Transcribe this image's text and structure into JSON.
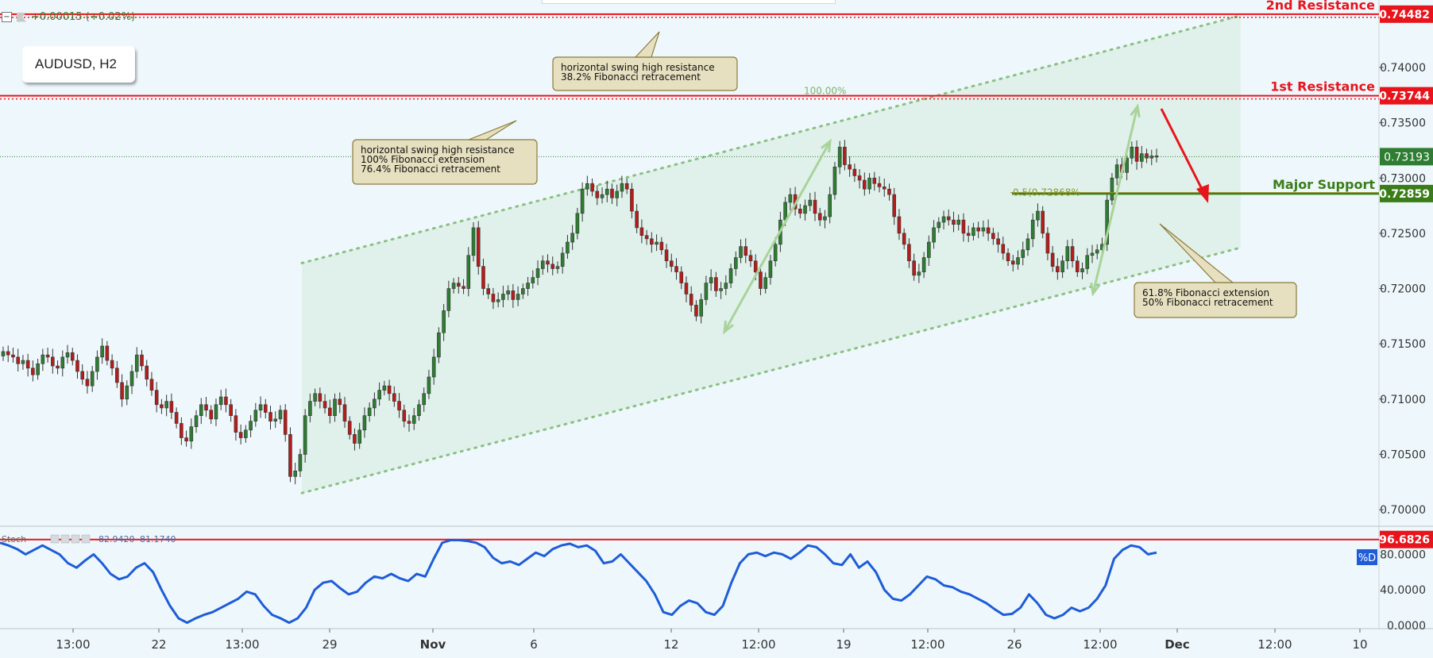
{
  "header": {
    "change_text": "+0.00015 (+0.02%)",
    "symbol_label": "AUDUSD, H2",
    "minus_glyph": "−"
  },
  "colors": {
    "background": "#eef8fc",
    "resistance": "#e8141c",
    "support": "#3a7d18",
    "candle_up": "#2e7d32",
    "candle_down": "#b71c1c",
    "channel": "#8cc084",
    "stoch_line": "#1e5cd8"
  },
  "levels": {
    "r2": {
      "label": "2nd Resistance",
      "value": "0.74482"
    },
    "r1": {
      "label": "1st Resistance",
      "value": "0.73744"
    },
    "support": {
      "label": "Major Support",
      "value": "0.72859"
    },
    "current": {
      "value": "0.73193"
    }
  },
  "callouts": [
    {
      "lines": [
        "horizontal swing high resistance",
        "38.2% Fibonacci retracement"
      ]
    },
    {
      "lines": [
        "horizontal swing high resistance",
        "100% Fibonacci extension",
        "76.4% Fibonacci retracement"
      ]
    },
    {
      "lines": [
        "61.8% Fibonacci extension",
        "50% Fibonacci retracement"
      ]
    }
  ],
  "fib_labels": {
    "top": "100.00%",
    "mid": "0.5(0.72868%"
  },
  "stoch": {
    "name": "Stoch",
    "value1": "82.9420",
    "value2": "81.1740",
    "level": "96.6826",
    "badge": "%D",
    "ticks": [
      "80.0000",
      "40.0000",
      "0.0000"
    ],
    "ylim": [
      0,
      100
    ],
    "values": [
      93,
      90,
      86,
      80,
      85,
      90,
      85,
      80,
      70,
      65,
      73,
      80,
      70,
      58,
      52,
      55,
      65,
      70,
      60,
      40,
      22,
      8,
      3,
      8,
      12,
      15,
      20,
      25,
      30,
      38,
      35,
      22,
      12,
      8,
      3,
      8,
      20,
      40,
      48,
      50,
      42,
      35,
      38,
      48,
      55,
      53,
      58,
      53,
      50,
      58,
      55,
      75,
      93,
      96,
      96,
      95,
      93,
      88,
      76,
      70,
      72,
      68,
      75,
      82,
      78,
      86,
      90,
      92,
      88,
      90,
      84,
      70,
      72,
      80,
      70,
      60,
      50,
      35,
      15,
      12,
      22,
      28,
      25,
      15,
      12,
      22,
      48,
      70,
      80,
      82,
      78,
      82,
      80,
      75,
      82,
      90,
      88,
      80,
      70,
      68,
      80,
      65,
      72,
      60,
      40,
      30,
      28,
      35,
      45,
      55,
      52,
      45,
      43,
      38,
      35,
      30,
      25,
      18,
      12,
      13,
      20,
      35,
      25,
      12,
      8,
      12,
      20,
      16,
      20,
      30,
      45,
      75,
      85,
      90,
      88,
      80,
      82
    ]
  },
  "chart_data": {
    "type": "candlestick",
    "symbol": "AUDUSD, H2",
    "ylim": [
      0.6985,
      0.7461
    ],
    "y_ticks": [
      "0.74000",
      "0.73500",
      "0.73000",
      "0.72500",
      "0.72000",
      "0.71500",
      "0.71000",
      "0.70500",
      "0.70000"
    ],
    "x_ticks": [
      "13:00",
      "22",
      "13:00",
      "29",
      "Nov",
      "6",
      "12",
      "12:00",
      "19",
      "12:00",
      "26",
      "12:00",
      "Dec",
      "12:00",
      "10"
    ],
    "closes": [
      0.7143,
      0.714,
      0.7138,
      0.7132,
      0.7135,
      0.7128,
      0.7122,
      0.7132,
      0.714,
      0.7138,
      0.713,
      0.7128,
      0.7138,
      0.7142,
      0.7135,
      0.7125,
      0.7118,
      0.7112,
      0.7125,
      0.7138,
      0.7148,
      0.7135,
      0.7128,
      0.7115,
      0.71,
      0.7112,
      0.7125,
      0.714,
      0.713,
      0.7118,
      0.7108,
      0.7095,
      0.7092,
      0.7098,
      0.7088,
      0.7078,
      0.7065,
      0.7062,
      0.7075,
      0.7085,
      0.7095,
      0.709,
      0.7082,
      0.7095,
      0.7102,
      0.7095,
      0.7085,
      0.707,
      0.7065,
      0.7072,
      0.708,
      0.709,
      0.7095,
      0.7088,
      0.708,
      0.7082,
      0.709,
      0.7068,
      0.703,
      0.7035,
      0.705,
      0.7085,
      0.7098,
      0.7105,
      0.7098,
      0.7092,
      0.7085,
      0.71,
      0.7095,
      0.708,
      0.7068,
      0.706,
      0.7072,
      0.7085,
      0.7092,
      0.71,
      0.7108,
      0.7112,
      0.7105,
      0.7098,
      0.709,
      0.708,
      0.7078,
      0.7085,
      0.7095,
      0.7105,
      0.712,
      0.7138,
      0.716,
      0.718,
      0.72,
      0.7205,
      0.7202,
      0.72,
      0.723,
      0.7255,
      0.722,
      0.72,
      0.7195,
      0.7188,
      0.719,
      0.7195,
      0.7198,
      0.719,
      0.7195,
      0.72,
      0.7205,
      0.721,
      0.7218,
      0.7225,
      0.7222,
      0.7218,
      0.722,
      0.7232,
      0.7242,
      0.725,
      0.7268,
      0.729,
      0.7295,
      0.7288,
      0.7282,
      0.7285,
      0.729,
      0.7282,
      0.7288,
      0.7295,
      0.729,
      0.727,
      0.7255,
      0.7248,
      0.7245,
      0.724,
      0.7242,
      0.7235,
      0.7225,
      0.722,
      0.7215,
      0.7205,
      0.7195,
      0.7185,
      0.7175,
      0.719,
      0.7205,
      0.721,
      0.7198,
      0.72,
      0.7205,
      0.7218,
      0.7228,
      0.7238,
      0.723,
      0.7225,
      0.7215,
      0.72,
      0.721,
      0.7225,
      0.724,
      0.7262,
      0.7278,
      0.7285,
      0.7272,
      0.7268,
      0.7275,
      0.728,
      0.7268,
      0.7262,
      0.7265,
      0.7285,
      0.731,
      0.7328,
      0.7312,
      0.7308,
      0.7302,
      0.7298,
      0.729,
      0.73,
      0.7295,
      0.7292,
      0.729,
      0.7285,
      0.7265,
      0.725,
      0.724,
      0.7225,
      0.7212,
      0.7215,
      0.7228,
      0.7242,
      0.7255,
      0.726,
      0.7265,
      0.7262,
      0.7258,
      0.7262,
      0.725,
      0.7248,
      0.7255,
      0.7252,
      0.7255,
      0.725,
      0.7245,
      0.724,
      0.7232,
      0.7225,
      0.7222,
      0.7228,
      0.7235,
      0.7245,
      0.7262,
      0.727,
      0.725,
      0.7232,
      0.722,
      0.7215,
      0.7225,
      0.7238,
      0.7225,
      0.7215,
      0.7218,
      0.723,
      0.7232,
      0.7235,
      0.724,
      0.728,
      0.73,
      0.7312,
      0.7305,
      0.7318,
      0.7328,
      0.7315,
      0.7322,
      0.7318,
      0.732,
      0.7319
    ]
  }
}
